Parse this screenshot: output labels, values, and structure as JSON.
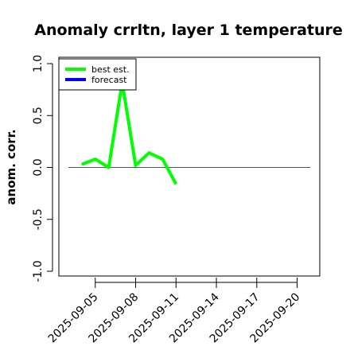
{
  "chart_data": {
    "type": "line",
    "title": "Anomaly crrltn, layer 1 temperature",
    "xlabel": "",
    "ylabel": "anom. corr.",
    "ylim": [
      -1.0,
      1.0
    ],
    "y_ticks": [
      -1.0,
      -0.5,
      0.0,
      0.5,
      1.0
    ],
    "y_tick_labels": [
      "-1.0",
      "-0.5",
      "0.0",
      "0.5",
      "1.0"
    ],
    "x_ticks": [
      "2025-09-05",
      "2025-09-08",
      "2025-09-11",
      "2025-09-14",
      "2025-09-17",
      "2025-09-20"
    ],
    "x_tick_colors": [
      "#000000",
      "#000000",
      "#228B22",
      "#000000",
      "#000000",
      "#000000"
    ],
    "xlim": [
      "2025-09-02",
      "2025-09-21"
    ],
    "zero_line": true,
    "grid": false,
    "legend_position": "top-left",
    "series": [
      {
        "name": "best est.",
        "color": "#00ff00",
        "x": [
          "2025-09-04",
          "2025-09-05",
          "2025-09-06",
          "2025-09-07",
          "2025-09-08",
          "2025-09-09",
          "2025-09-10",
          "2025-09-11"
        ],
        "values": [
          0.03,
          0.08,
          0.0,
          0.82,
          0.02,
          0.14,
          0.08,
          -0.16
        ]
      },
      {
        "name": "forecast",
        "color": "#0000ff",
        "x": [],
        "values": []
      }
    ]
  }
}
